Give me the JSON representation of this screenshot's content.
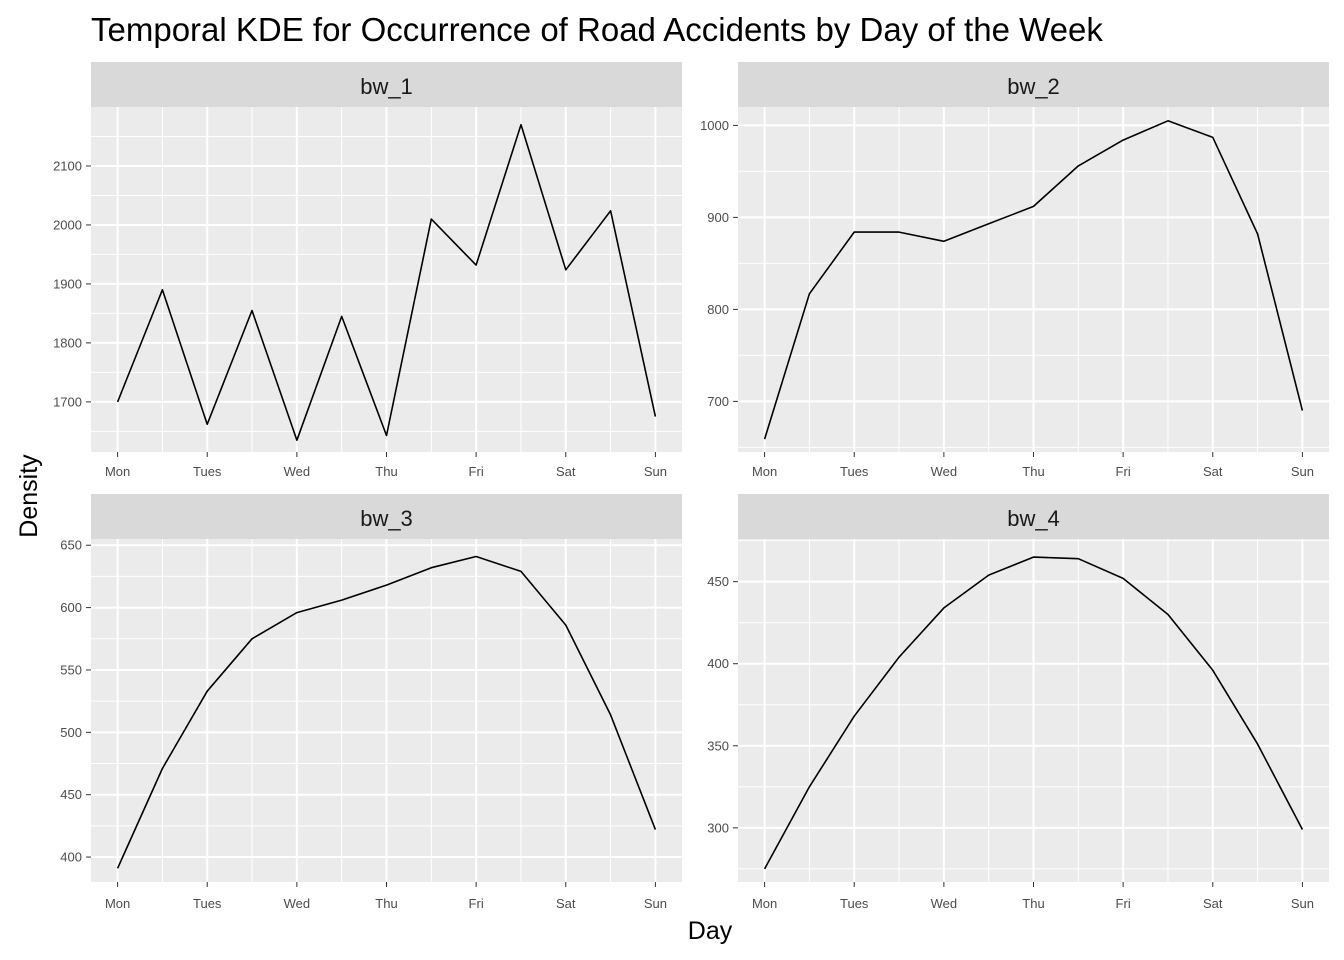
{
  "chart_data": {
    "type": "line",
    "title": "Temporal KDE for Occurrence of Road Accidents by Day of the Week",
    "xlabel": "Day",
    "ylabel": "Density",
    "x_ticks": [
      "Mon",
      "Tues",
      "Wed",
      "Thu",
      "Fri",
      "Sat",
      "Sun"
    ],
    "x": [
      1,
      1.5,
      2,
      2.5,
      3,
      3.5,
      4,
      4.5,
      5,
      5.5,
      6,
      6.5,
      7
    ],
    "grid": true,
    "legend": "none",
    "line_color": "#000000",
    "panel_background": "#EBEBEB",
    "strip_background": "#D9D9D9",
    "panels": [
      {
        "name": "bw_1",
        "ylim": [
          1615,
          2200
        ],
        "yticks": [
          1700,
          1800,
          1900,
          2000,
          2100
        ],
        "values": [
          1700,
          1890,
          1662,
          1855,
          1635,
          1845,
          1643,
          2010,
          1932,
          2170,
          1924,
          2024,
          1675
        ]
      },
      {
        "name": "bw_2",
        "ylim": [
          645,
          1020
        ],
        "yticks": [
          700,
          800,
          900,
          1000
        ],
        "values": [
          659,
          817,
          884,
          884,
          874,
          893,
          912,
          956,
          984,
          1005,
          987,
          882,
          690
        ]
      },
      {
        "name": "bw_3",
        "ylim": [
          380,
          655
        ],
        "yticks": [
          400,
          450,
          500,
          550,
          600,
          650
        ],
        "values": [
          391,
          471,
          533,
          575,
          596,
          606,
          618,
          632,
          641,
          629,
          586,
          514,
          422
        ]
      },
      {
        "name": "bw_4",
        "ylim": [
          267,
          476
        ],
        "yticks": [
          300,
          350,
          400,
          450
        ],
        "values": [
          275,
          325,
          368,
          404,
          434,
          454,
          465,
          464,
          452,
          430,
          396,
          351,
          299
        ]
      }
    ]
  }
}
